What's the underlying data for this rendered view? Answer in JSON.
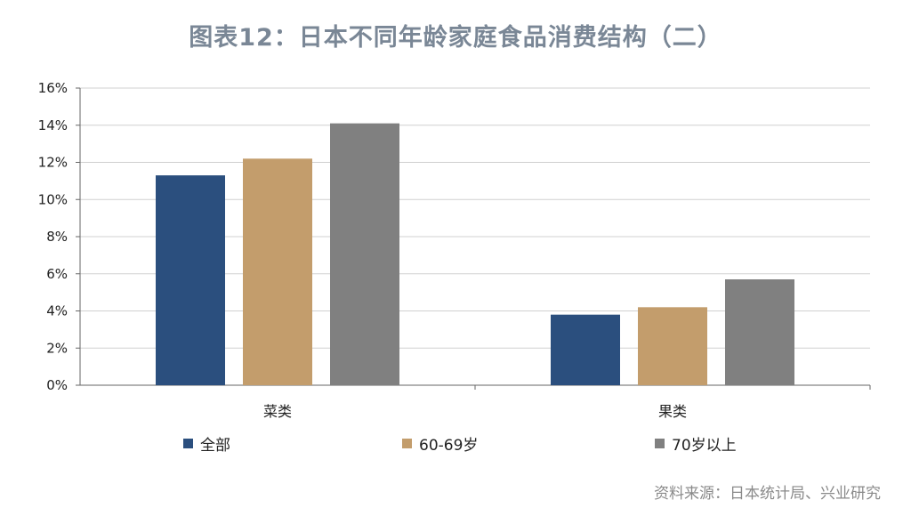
{
  "title": "图表12：日本不同年龄家庭食品消费结构（二）",
  "source": "资料来源：日本统计局、兴业研究",
  "chart_data": {
    "type": "bar",
    "categories": [
      "菜类",
      "果类"
    ],
    "series": [
      {
        "name": "全部",
        "color": "#2b4f7e",
        "values": [
          11.3,
          3.8
        ]
      },
      {
        "name": "60-69岁",
        "color": "#c39d6c",
        "values": [
          12.2,
          4.2
        ]
      },
      {
        "name": "70岁以上",
        "color": "#808080",
        "values": [
          14.1,
          5.7
        ]
      }
    ],
    "ylim": [
      0,
      16
    ],
    "yticks": [
      0,
      2,
      4,
      6,
      8,
      10,
      12,
      14,
      16
    ],
    "ytick_labels": [
      "0%",
      "2%",
      "4%",
      "6%",
      "8%",
      "10%",
      "12%",
      "14%",
      "16%"
    ],
    "grid": true,
    "legend": "bottom"
  }
}
